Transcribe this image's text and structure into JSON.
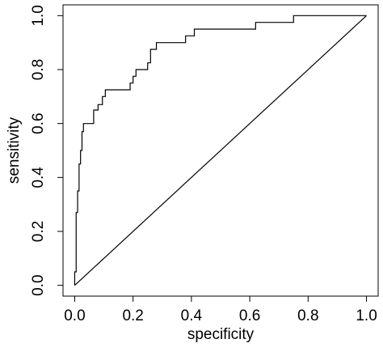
{
  "chart_data": {
    "type": "line",
    "xlabel": "specificity",
    "ylabel": "sensitivity",
    "xlim": [
      -0.04,
      1.04
    ],
    "ylim": [
      -0.04,
      1.04
    ],
    "xticks": [
      {
        "value": 0,
        "label": "0.0"
      },
      {
        "value": 0.2,
        "label": "0.2"
      },
      {
        "value": 0.4,
        "label": "0.4"
      },
      {
        "value": 0.6,
        "label": "0.6"
      },
      {
        "value": 0.8,
        "label": "0.8"
      },
      {
        "value": 1,
        "label": "1.0"
      }
    ],
    "yticks": [
      {
        "value": 0,
        "label": "0.0"
      },
      {
        "value": 0.2,
        "label": "0.2"
      },
      {
        "value": 0.4,
        "label": "0.4"
      },
      {
        "value": 0.6,
        "label": "0.6"
      },
      {
        "value": 0.8,
        "label": "0.8"
      },
      {
        "value": 1,
        "label": "1.0"
      }
    ],
    "series": [
      {
        "color": "#000000",
        "x": [
          0,
          0,
          0.005,
          0.005,
          0.01,
          0.01,
          0.015,
          0.015,
          0.02,
          0.02,
          0.025,
          0.025,
          0.03,
          0.03,
          0.065,
          0.065,
          0.08,
          0.08,
          0.095,
          0.095,
          0.105,
          0.105,
          0.19,
          0.19,
          0.2,
          0.2,
          0.21,
          0.21,
          0.25,
          0.25,
          0.26,
          0.26,
          0.28,
          0.28,
          0.38,
          0.38,
          0.41,
          0.41,
          0.62,
          0.62,
          0.75,
          0.75,
          1
        ],
        "values": [
          0,
          0.05,
          0.05,
          0.27,
          0.27,
          0.35,
          0.35,
          0.45,
          0.45,
          0.5,
          0.5,
          0.57,
          0.57,
          0.6,
          0.6,
          0.65,
          0.65,
          0.67,
          0.67,
          0.7,
          0.7,
          0.725,
          0.725,
          0.75,
          0.75,
          0.775,
          0.775,
          0.8,
          0.8,
          0.825,
          0.825,
          0.875,
          0.875,
          0.9,
          0.9,
          0.925,
          0.925,
          0.95,
          0.95,
          0.975,
          0.975,
          1,
          1
        ]
      },
      {
        "color": "#000000",
        "x": [
          0,
          1
        ],
        "values": [
          0,
          1
        ]
      }
    ]
  }
}
